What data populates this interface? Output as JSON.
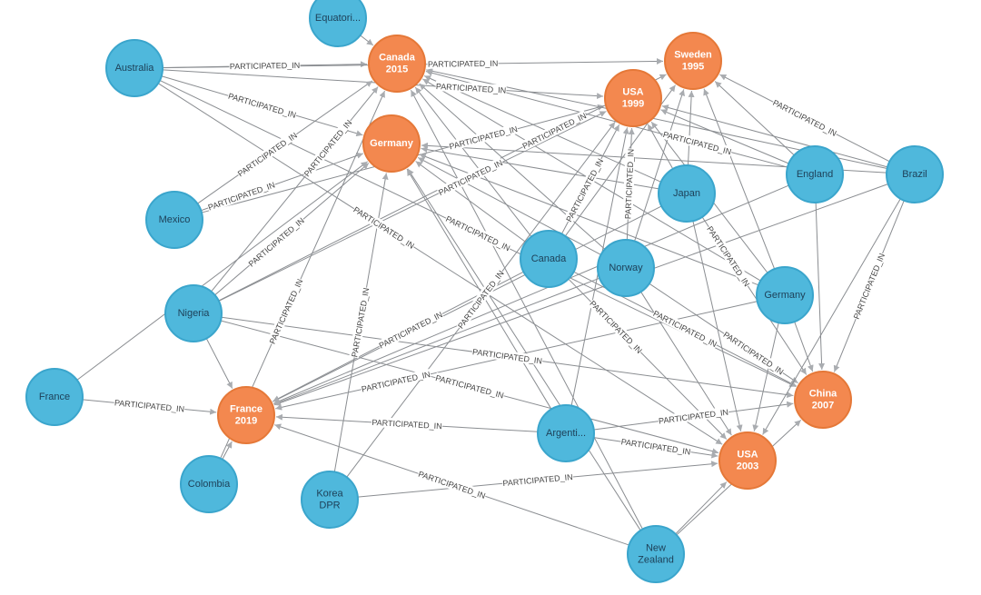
{
  "colors": {
    "team": "#4fb8dc",
    "team_stroke": "#3aa5cc",
    "tournament": "#f3884f",
    "tournament_stroke": "#e57838",
    "edge": "#8a8d91",
    "team_text": "#1d3f57",
    "tournament_text": "#ffffff"
  },
  "relationship_label": "PARTICIPATED_IN",
  "nodes": [
    {
      "id": "canada2015",
      "type": "tournament",
      "label": "Canada\n2015"
    },
    {
      "id": "sweden1995",
      "type": "tournament",
      "label": "Sweden\n1995"
    },
    {
      "id": "usa1999",
      "type": "tournament",
      "label": "USA\n1999"
    },
    {
      "id": "germanyT",
      "type": "tournament",
      "label": "Germany"
    },
    {
      "id": "france2019",
      "type": "tournament",
      "label": "France\n2019"
    },
    {
      "id": "china2007",
      "type": "tournament",
      "label": "China\n2007"
    },
    {
      "id": "usa2003",
      "type": "tournament",
      "label": "USA\n2003"
    },
    {
      "id": "equatorial",
      "type": "team",
      "label": "Equatori..."
    },
    {
      "id": "australia",
      "type": "team",
      "label": "Australia"
    },
    {
      "id": "mexico",
      "type": "team",
      "label": "Mexico"
    },
    {
      "id": "nigeria",
      "type": "team",
      "label": "Nigeria"
    },
    {
      "id": "france",
      "type": "team",
      "label": "France"
    },
    {
      "id": "colombia",
      "type": "team",
      "label": "Colombia"
    },
    {
      "id": "koreadpr",
      "type": "team",
      "label": "Korea\nDPR"
    },
    {
      "id": "canada",
      "type": "team",
      "label": "Canada"
    },
    {
      "id": "norway",
      "type": "team",
      "label": "Norway"
    },
    {
      "id": "japan",
      "type": "team",
      "label": "Japan"
    },
    {
      "id": "england",
      "type": "team",
      "label": "England"
    },
    {
      "id": "brazil",
      "type": "team",
      "label": "Brazil"
    },
    {
      "id": "germany",
      "type": "team",
      "label": "Germany"
    },
    {
      "id": "argentina",
      "type": "team",
      "label": "Argenti..."
    },
    {
      "id": "newzealand",
      "type": "team",
      "label": "New\nZealand"
    }
  ],
  "edges": [
    [
      "equatorial",
      "canada2015"
    ],
    [
      "australia",
      "canada2015"
    ],
    [
      "australia",
      "usa1999"
    ],
    [
      "australia",
      "germanyT"
    ],
    [
      "australia",
      "china2007"
    ],
    [
      "australia",
      "usa2003"
    ],
    [
      "australia",
      "sweden1995"
    ],
    [
      "mexico",
      "canada2015"
    ],
    [
      "mexico",
      "germanyT"
    ],
    [
      "mexico",
      "usa1999"
    ],
    [
      "nigeria",
      "canada2015"
    ],
    [
      "nigeria",
      "germanyT"
    ],
    [
      "nigeria",
      "france2019"
    ],
    [
      "nigeria",
      "usa1999"
    ],
    [
      "nigeria",
      "china2007"
    ],
    [
      "nigeria",
      "usa2003"
    ],
    [
      "nigeria",
      "sweden1995"
    ],
    [
      "france",
      "france2019"
    ],
    [
      "france",
      "germanyT"
    ],
    [
      "colombia",
      "france2019"
    ],
    [
      "colombia",
      "canada2015"
    ],
    [
      "koreadpr",
      "germanyT"
    ],
    [
      "koreadpr",
      "usa1999"
    ],
    [
      "koreadpr",
      "usa2003"
    ],
    [
      "canada",
      "canada2015"
    ],
    [
      "canada",
      "germanyT"
    ],
    [
      "canada",
      "usa1999"
    ],
    [
      "canada",
      "france2019"
    ],
    [
      "canada",
      "china2007"
    ],
    [
      "canada",
      "usa2003"
    ],
    [
      "canada",
      "sweden1995"
    ],
    [
      "norway",
      "canada2015"
    ],
    [
      "norway",
      "germanyT"
    ],
    [
      "norway",
      "usa1999"
    ],
    [
      "norway",
      "france2019"
    ],
    [
      "norway",
      "china2007"
    ],
    [
      "norway",
      "usa2003"
    ],
    [
      "norway",
      "sweden1995"
    ],
    [
      "japan",
      "canada2015"
    ],
    [
      "japan",
      "usa1999"
    ],
    [
      "japan",
      "sweden1995"
    ],
    [
      "japan",
      "france2019"
    ],
    [
      "japan",
      "china2007"
    ],
    [
      "japan",
      "usa2003"
    ],
    [
      "japan",
      "germanyT"
    ],
    [
      "england",
      "canada2015"
    ],
    [
      "england",
      "france2019"
    ],
    [
      "england",
      "china2007"
    ],
    [
      "england",
      "usa1999"
    ],
    [
      "england",
      "sweden1995"
    ],
    [
      "brazil",
      "canada2015"
    ],
    [
      "brazil",
      "usa1999"
    ],
    [
      "brazil",
      "sweden1995"
    ],
    [
      "brazil",
      "germanyT"
    ],
    [
      "brazil",
      "france2019"
    ],
    [
      "brazil",
      "china2007"
    ],
    [
      "brazil",
      "usa2003"
    ],
    [
      "germany",
      "canada2015"
    ],
    [
      "germany",
      "germanyT"
    ],
    [
      "germany",
      "sweden1995"
    ],
    [
      "germany",
      "usa1999"
    ],
    [
      "germany",
      "france2019"
    ],
    [
      "germany",
      "china2007"
    ],
    [
      "germany",
      "usa2003"
    ],
    [
      "argentina",
      "france2019"
    ],
    [
      "argentina",
      "usa2003"
    ],
    [
      "argentina",
      "china2007"
    ],
    [
      "argentina",
      "germanyT"
    ],
    [
      "argentina",
      "usa1999"
    ],
    [
      "newzealand",
      "france2019"
    ],
    [
      "newzealand",
      "canada2015"
    ],
    [
      "newzealand",
      "china2007"
    ],
    [
      "newzealand",
      "usa2003"
    ],
    [
      "newzealand",
      "germanyT"
    ]
  ]
}
